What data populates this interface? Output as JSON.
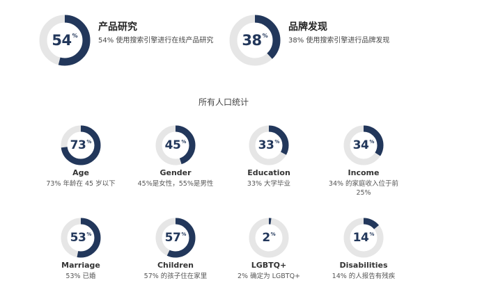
{
  "colors": {
    "filled": "#22375b",
    "track": "#e6e6e6"
  },
  "top_stats": [
    {
      "value": 54,
      "percent_sign": "%",
      "title": "产品研究",
      "desc": "54% 使用搜索引擎进行在线产品研究"
    },
    {
      "value": 38,
      "percent_sign": "%",
      "title": "品牌发现",
      "desc": "38% 使用搜索引擎进行品牌发现"
    }
  ],
  "section_title": "所有人口统计",
  "demographics": [
    {
      "value": 73,
      "percent_sign": "%",
      "label": "Age",
      "desc": "73% 年龄在 45 岁以下"
    },
    {
      "value": 45,
      "percent_sign": "%",
      "label": "Gender",
      "desc": "45%是女性，55%是男性"
    },
    {
      "value": 33,
      "percent_sign": "%",
      "label": "Education",
      "desc": "33% 大学毕业"
    },
    {
      "value": 34,
      "percent_sign": "%",
      "label": "Income",
      "desc": "34% 的家庭收入位于前 25%"
    },
    {
      "value": 53,
      "percent_sign": "%",
      "label": "Marriage",
      "desc": "53% 已婚"
    },
    {
      "value": 57,
      "percent_sign": "%",
      "label": "Children",
      "desc": "57% 的孩子住在家里"
    },
    {
      "value": 2,
      "percent_sign": "%",
      "label": "LGBTQ+",
      "desc": "2% 确定为 LGBTQ+"
    },
    {
      "value": 14,
      "percent_sign": "%",
      "label": "Disabilities",
      "desc": "14% 的人报告有残疾"
    }
  ]
}
